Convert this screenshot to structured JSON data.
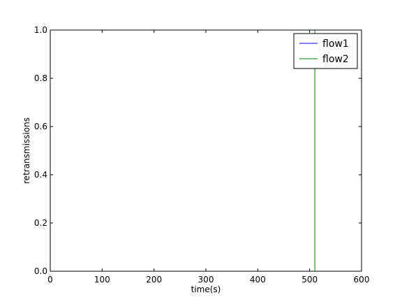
{
  "chart_data": {
    "type": "line",
    "title": "",
    "xlabel": "time(s)",
    "ylabel": "retransmissions",
    "xlim": [
      0,
      600
    ],
    "ylim": [
      0,
      1.0
    ],
    "xticks": [
      0,
      100,
      200,
      300,
      400,
      500,
      600
    ],
    "yticks": [
      0.0,
      0.2,
      0.4,
      0.6,
      0.8,
      1.0
    ],
    "xtick_labels": [
      "0",
      "100",
      "200",
      "300",
      "400",
      "500",
      "600"
    ],
    "ytick_labels": [
      "0.0",
      "0.2",
      "0.4",
      "0.6",
      "0.8",
      "1.0"
    ],
    "grid": false,
    "legend_position": "top-right",
    "series": [
      {
        "name": "flow1",
        "color": "#0000ff",
        "x": [
          0,
          565
        ],
        "y": [
          0,
          0
        ]
      },
      {
        "name": "flow2",
        "color": "#008000",
        "x": [
          0,
          510,
          510,
          510,
          565
        ],
        "y": [
          0,
          0,
          1.0,
          0,
          0
        ]
      }
    ]
  }
}
